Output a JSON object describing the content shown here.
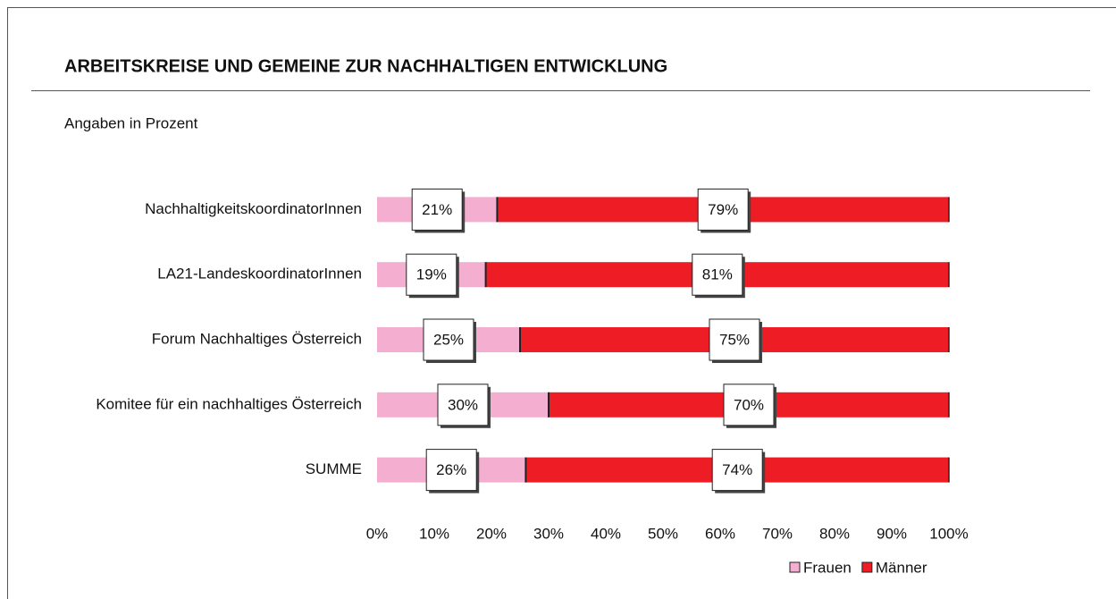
{
  "chart_data": {
    "type": "stacked-bar-horizontal",
    "title": "ARBEITSKREISE UND GEMEINE ZUR NACHHALTIGEN ENTWICKLUNG",
    "subtitle": "Angaben in Prozent",
    "categories": [
      "NachhaltigkeitskoordinatorInnen",
      "LA21-LandeskoordinatorInnen",
      "Forum Nachhaltiges Österreich",
      "Komitee für ein nachhaltiges Österreich",
      "SUMME"
    ],
    "series": [
      {
        "name": "Frauen",
        "color": "#f4aed0",
        "values": [
          21,
          19,
          25,
          30,
          26
        ],
        "value_labels": [
          "21%",
          "19%",
          "25%",
          "30%",
          "26%"
        ]
      },
      {
        "name": "Männer",
        "color": "#ee1c25",
        "values": [
          79,
          81,
          75,
          70,
          74
        ],
        "value_labels": [
          "79%",
          "81%",
          "75%",
          "70%",
          "74%"
        ]
      }
    ],
    "xlim": [
      0,
      100
    ],
    "xticks": [
      {
        "value": 0,
        "label": "0%"
      },
      {
        "value": 10,
        "label": "10%"
      },
      {
        "value": 20,
        "label": "20%"
      },
      {
        "value": 30,
        "label": "30%"
      },
      {
        "value": 40,
        "label": "40%"
      },
      {
        "value": 50,
        "label": "50%"
      },
      {
        "value": 60,
        "label": "60%"
      },
      {
        "value": 70,
        "label": "70%"
      },
      {
        "value": 80,
        "label": "80%"
      },
      {
        "value": 90,
        "label": "90%"
      },
      {
        "value": 100,
        "label": "100%"
      }
    ],
    "legend": "bottom-right"
  }
}
